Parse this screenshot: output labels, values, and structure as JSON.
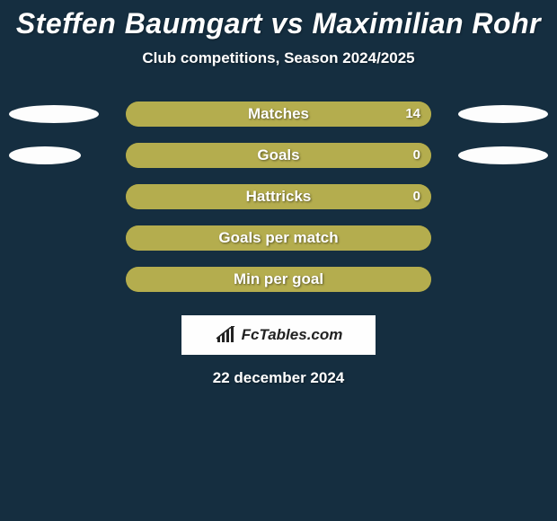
{
  "colors": {
    "page_bg": "#152e40",
    "text_white": "#ffffff",
    "bar_track": "#a39928",
    "bar_fill": "#b4ad4e",
    "ellipse": "#fdfdfd",
    "logo_bg": "#fefefe",
    "logo_text": "#222222"
  },
  "title": "Steffen Baumgart vs Maximilian Rohr",
  "subtitle": "Club competitions, Season 2024/2025",
  "rows": [
    {
      "label": "Matches",
      "value_left": "",
      "value_right": "14",
      "fill_side": "right",
      "fill_pct": 100,
      "ellipse_left_w": 100,
      "ellipse_right_w": 100
    },
    {
      "label": "Goals",
      "value_left": "",
      "value_right": "0",
      "fill_side": "right",
      "fill_pct": 100,
      "ellipse_left_w": 80,
      "ellipse_right_w": 100
    },
    {
      "label": "Hattricks",
      "value_left": "",
      "value_right": "0",
      "fill_side": "right",
      "fill_pct": 100,
      "ellipse_left_w": 0,
      "ellipse_right_w": 0
    },
    {
      "label": "Goals per match",
      "value_left": "",
      "value_right": "",
      "fill_side": "right",
      "fill_pct": 100,
      "ellipse_left_w": 0,
      "ellipse_right_w": 0
    },
    {
      "label": "Min per goal",
      "value_left": "",
      "value_right": "",
      "fill_side": "right",
      "fill_pct": 100,
      "ellipse_left_w": 0,
      "ellipse_right_w": 0
    }
  ],
  "logo_text": "FcTables.com",
  "date": "22 december 2024"
}
